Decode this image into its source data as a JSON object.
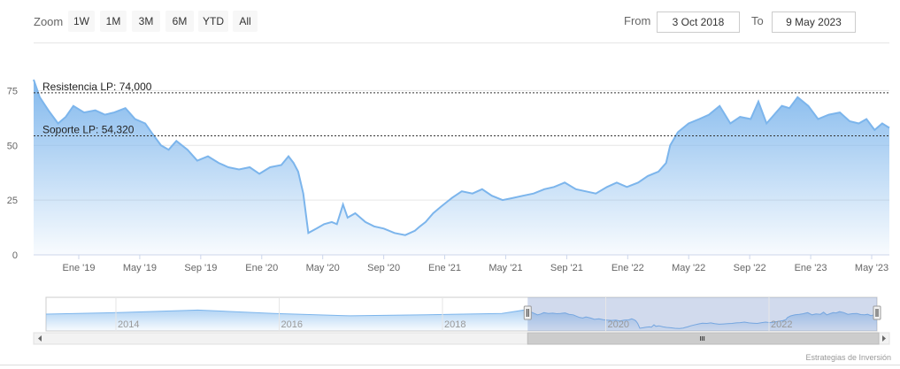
{
  "toolbar": {
    "zoom_label": "Zoom",
    "buttons": [
      "1W",
      "1M",
      "3M",
      "6M",
      "YTD",
      "All"
    ],
    "from_label": "From",
    "from_value": "3 Oct 2018",
    "to_label": "To",
    "to_value": "9 May 2023"
  },
  "credits": "Estrategias de Inversión",
  "colors": {
    "line": "#7cb5ec",
    "fill_top": "#7cb5ec",
    "ref_line": "#333333"
  },
  "chart_data": {
    "type": "area",
    "title": "",
    "xlabel": "",
    "ylabel": "",
    "ylim": [
      0,
      80
    ],
    "y_ticks": [
      0,
      25,
      50,
      75
    ],
    "grid": true,
    "x_ticks": [
      "Ene '19",
      "May '19",
      "Sep '19",
      "Ene '20",
      "May '20",
      "Sep '20",
      "Ene '21",
      "May '21",
      "Sep '21",
      "Ene '22",
      "May '22",
      "Sep '22",
      "Ene '23",
      "May '23"
    ],
    "x_range": [
      "2018-10-03",
      "2023-05-09"
    ],
    "series": [
      {
        "x": [
          "2018-10-03",
          "2018-10-15",
          "2018-11-01",
          "2018-11-20",
          "2018-12-05",
          "2018-12-20",
          "2019-01-10",
          "2019-02-01",
          "2019-02-20",
          "2019-03-10",
          "2019-04-01",
          "2019-04-20",
          "2019-05-10",
          "2019-05-25",
          "2019-06-10",
          "2019-06-25",
          "2019-07-10",
          "2019-08-01",
          "2019-08-20",
          "2019-09-10",
          "2019-10-01",
          "2019-10-20",
          "2019-11-10",
          "2019-12-01",
          "2019-12-20",
          "2020-01-10",
          "2020-02-01",
          "2020-02-15",
          "2020-02-25",
          "2020-03-05",
          "2020-03-15",
          "2020-03-25",
          "2020-04-10",
          "2020-04-25",
          "2020-05-10",
          "2020-05-20",
          "2020-06-01",
          "2020-06-10",
          "2020-06-25",
          "2020-07-15",
          "2020-08-01",
          "2020-08-20",
          "2020-09-10",
          "2020-10-01",
          "2020-10-20",
          "2020-10-30",
          "2020-11-10",
          "2020-11-25",
          "2020-12-10",
          "2021-01-01",
          "2021-01-20",
          "2021-02-10",
          "2021-03-01",
          "2021-03-20",
          "2021-04-10",
          "2021-05-01",
          "2021-05-20",
          "2021-06-10",
          "2021-07-01",
          "2021-07-20",
          "2021-08-10",
          "2021-09-01",
          "2021-09-20",
          "2021-10-10",
          "2021-11-01",
          "2021-11-20",
          "2021-12-10",
          "2022-01-01",
          "2022-01-20",
          "2022-02-10",
          "2022-02-25",
          "2022-03-05",
          "2022-03-20",
          "2022-04-10",
          "2022-05-01",
          "2022-05-20",
          "2022-06-10",
          "2022-07-01",
          "2022-07-20",
          "2022-08-10",
          "2022-08-25",
          "2022-09-10",
          "2022-09-25",
          "2022-10-10",
          "2022-10-25",
          "2022-11-10",
          "2022-12-01",
          "2022-12-20",
          "2023-01-10",
          "2023-02-01",
          "2023-02-20",
          "2023-03-10",
          "2023-03-25",
          "2023-04-10",
          "2023-04-25",
          "2023-05-09"
        ],
        "y": [
          80,
          72,
          66,
          60,
          63,
          68,
          65,
          66,
          64,
          65,
          67,
          62,
          60,
          55,
          50,
          48,
          52,
          48,
          43,
          45,
          42,
          40,
          39,
          40,
          37,
          40,
          41,
          45,
          42,
          38,
          28,
          10,
          12,
          14,
          15,
          14,
          23,
          17,
          19,
          15,
          13,
          12,
          10,
          9,
          11,
          13,
          15,
          19,
          22,
          26,
          29,
          28,
          30,
          27,
          25,
          26,
          27,
          28,
          30,
          31,
          33,
          30,
          29,
          28,
          31,
          33,
          31,
          33,
          36,
          38,
          42,
          50,
          56,
          60,
          62,
          64,
          68,
          60,
          63,
          62,
          70,
          60,
          64,
          68,
          67,
          72,
          68,
          62,
          64,
          65,
          61,
          60,
          62,
          57,
          60,
          58
        ]
      }
    ],
    "reference_lines": [
      {
        "label": "Resistencia LP: 74,000",
        "value": 74
      },
      {
        "label": "Soporte LP: 54,320",
        "value": 54.32
      }
    ],
    "navigator": {
      "x_ticks": [
        "2014",
        "2016",
        "2018",
        "2020",
        "2022"
      ],
      "x_range": [
        "2012-06-01",
        "2023-05-09"
      ],
      "selected_range": [
        "2018-10-03",
        "2023-05-09"
      ]
    }
  }
}
